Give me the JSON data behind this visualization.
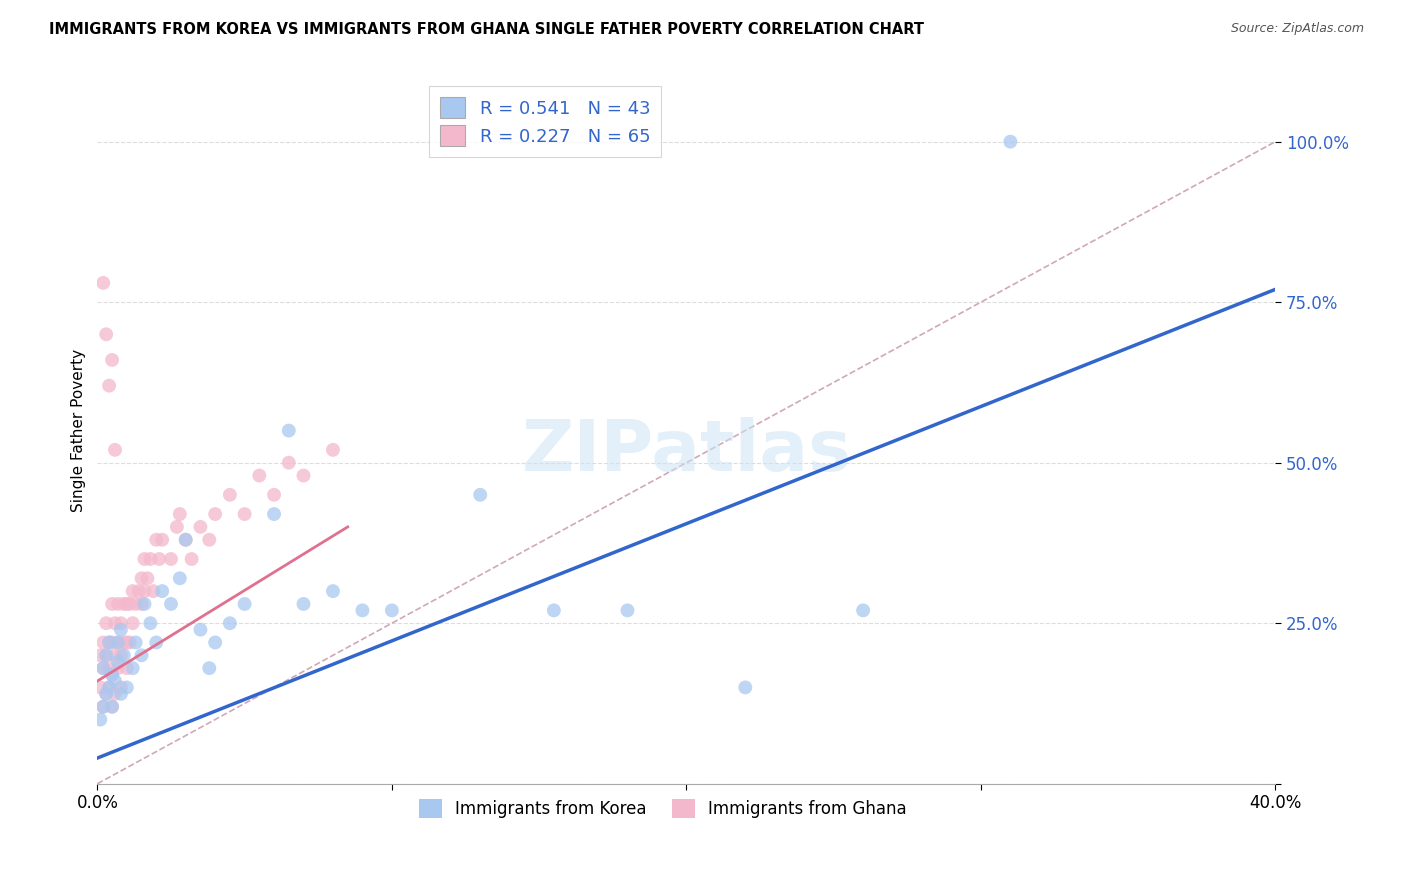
{
  "title": "IMMIGRANTS FROM KOREA VS IMMIGRANTS FROM GHANA SINGLE FATHER POVERTY CORRELATION CHART",
  "source": "Source: ZipAtlas.com",
  "ylabel": "Single Father Poverty",
  "xlim": [
    0.0,
    0.4
  ],
  "ylim": [
    0.0,
    1.1
  ],
  "korea_color": "#a8c8f0",
  "ghana_color": "#f4b8cc",
  "korea_line_color": "#3366cc",
  "ghana_line_color": "#e07090",
  "diag_color": "#d0a8b8",
  "korea_R": 0.541,
  "korea_N": 43,
  "ghana_R": 0.227,
  "ghana_N": 65,
  "watermark": "ZIPatlas",
  "korea_x": [
    0.001,
    0.002,
    0.002,
    0.003,
    0.003,
    0.004,
    0.004,
    0.005,
    0.005,
    0.006,
    0.007,
    0.007,
    0.008,
    0.008,
    0.009,
    0.01,
    0.012,
    0.013,
    0.015,
    0.016,
    0.018,
    0.02,
    0.022,
    0.025,
    0.028,
    0.03,
    0.035,
    0.038,
    0.04,
    0.045,
    0.05,
    0.06,
    0.065,
    0.07,
    0.08,
    0.09,
    0.1,
    0.13,
    0.155,
    0.18,
    0.22,
    0.26,
    0.31
  ],
  "korea_y": [
    0.1,
    0.12,
    0.18,
    0.14,
    0.2,
    0.15,
    0.22,
    0.12,
    0.17,
    0.16,
    0.19,
    0.22,
    0.14,
    0.24,
    0.2,
    0.15,
    0.18,
    0.22,
    0.2,
    0.28,
    0.25,
    0.22,
    0.3,
    0.28,
    0.32,
    0.38,
    0.24,
    0.18,
    0.22,
    0.25,
    0.28,
    0.42,
    0.55,
    0.28,
    0.3,
    0.27,
    0.27,
    0.45,
    0.27,
    0.27,
    0.15,
    0.27,
    1.0
  ],
  "ghana_x": [
    0.001,
    0.001,
    0.002,
    0.002,
    0.002,
    0.003,
    0.003,
    0.003,
    0.004,
    0.004,
    0.004,
    0.005,
    0.005,
    0.005,
    0.005,
    0.006,
    0.006,
    0.006,
    0.007,
    0.007,
    0.007,
    0.008,
    0.008,
    0.008,
    0.009,
    0.009,
    0.01,
    0.01,
    0.01,
    0.011,
    0.011,
    0.012,
    0.012,
    0.013,
    0.014,
    0.015,
    0.015,
    0.016,
    0.016,
    0.017,
    0.018,
    0.019,
    0.02,
    0.021,
    0.022,
    0.025,
    0.027,
    0.028,
    0.03,
    0.032,
    0.035,
    0.038,
    0.04,
    0.045,
    0.05,
    0.055,
    0.06,
    0.065,
    0.07,
    0.08,
    0.002,
    0.003,
    0.004,
    0.005,
    0.006
  ],
  "ghana_y": [
    0.15,
    0.2,
    0.12,
    0.18,
    0.22,
    0.14,
    0.2,
    0.25,
    0.15,
    0.18,
    0.22,
    0.12,
    0.17,
    0.22,
    0.28,
    0.14,
    0.2,
    0.25,
    0.18,
    0.22,
    0.28,
    0.15,
    0.2,
    0.25,
    0.22,
    0.28,
    0.18,
    0.22,
    0.28,
    0.22,
    0.28,
    0.25,
    0.3,
    0.28,
    0.3,
    0.32,
    0.28,
    0.35,
    0.3,
    0.32,
    0.35,
    0.3,
    0.38,
    0.35,
    0.38,
    0.35,
    0.4,
    0.42,
    0.38,
    0.35,
    0.4,
    0.38,
    0.42,
    0.45,
    0.42,
    0.48,
    0.45,
    0.5,
    0.48,
    0.52,
    0.78,
    0.7,
    0.62,
    0.66,
    0.52
  ],
  "korea_line_x0": 0.0,
  "korea_line_y0": 0.04,
  "korea_line_x1": 0.4,
  "korea_line_y1": 0.77,
  "ghana_line_x0": 0.0,
  "ghana_line_y0": 0.16,
  "ghana_line_x1": 0.085,
  "ghana_line_y1": 0.4,
  "diag_line_x0": 0.0,
  "diag_line_y0": 0.0,
  "diag_line_x1": 0.4,
  "diag_line_y1": 1.0
}
